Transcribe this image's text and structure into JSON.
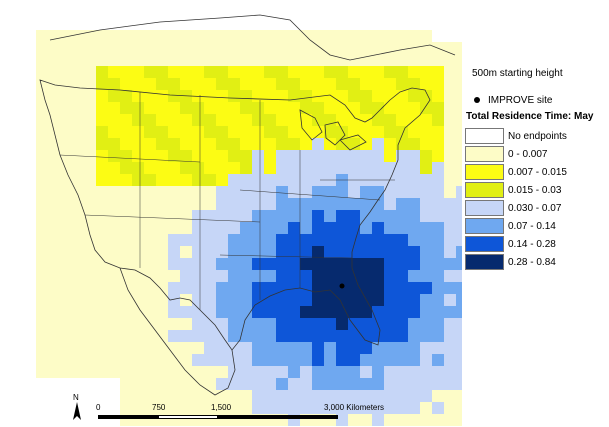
{
  "legend": {
    "height_label": "500m starting height",
    "site_label": "IMPROVE site",
    "title": "Total Residence Time: May",
    "bins": [
      {
        "label": "No endpoints",
        "color": "#ffffff"
      },
      {
        "label": "0 - 0.007",
        "color": "#fdfcc7"
      },
      {
        "label": "0.007 - 0.015",
        "color": "#fcfc14"
      },
      {
        "label": "0.015 - 0.03",
        "color": "#e1ef14"
      },
      {
        "label": "0.030 - 0.07",
        "color": "#c6d6f7"
      },
      {
        "label": "0.07 - 0.14",
        "color": "#6fa8f0"
      },
      {
        "label": "0.14 - 0.28",
        "color": "#0e56d8"
      },
      {
        "label": "0.28 - 0.84",
        "color": "#062a6e"
      }
    ]
  },
  "scale": {
    "north": "N",
    "ticks": [
      "0",
      "750",
      "1,500",
      "3,000 Kilometers"
    ]
  }
}
